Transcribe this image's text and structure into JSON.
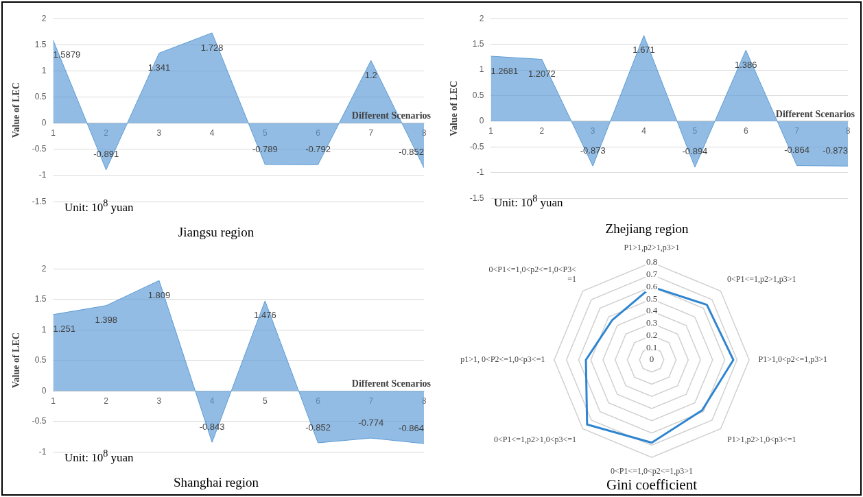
{
  "chart_data": [
    {
      "type": "area",
      "title": "Jiangsu region",
      "xlabel": "Different Scenarios",
      "ylabel": "Value of LEC",
      "categories": [
        "1",
        "2",
        "3",
        "4",
        "5",
        "6",
        "7",
        "8"
      ],
      "series": [
        {
          "color": "#5b9bd5",
          "values": [
            1.5879,
            -0.891,
            1.341,
            1.728,
            -0.789,
            -0.792,
            1.2,
            -0.852
          ]
        }
      ],
      "ylim": [
        -1.5,
        2
      ],
      "yticks": [
        -1.5,
        -1,
        -0.5,
        0,
        0.5,
        1,
        1.5,
        2
      ],
      "grid": "y",
      "data_labels": true,
      "marker": "none",
      "annotations": [
        "Unit: 10$^{8}$ yuan"
      ]
    },
    {
      "type": "area",
      "title": "Zhejiang region",
      "xlabel": "Different Scenarios",
      "ylabel": "Value of LEC",
      "categories": [
        "1",
        "2",
        "3",
        "4",
        "5",
        "6",
        "7",
        "8"
      ],
      "series": [
        {
          "color": "#5b9bd5",
          "values": [
            1.2681,
            1.2072,
            -0.873,
            1.671,
            -0.894,
            1.386,
            -0.864,
            -0.873
          ]
        }
      ],
      "ylim": [
        -1.5,
        2
      ],
      "yticks": [
        -1.5,
        -1,
        -0.5,
        0,
        0.5,
        1,
        1.5,
        2
      ],
      "grid": "y",
      "data_labels": true,
      "marker": "none",
      "annotations": [
        "Unit: 10$^{8}$ yuan"
      ]
    },
    {
      "type": "area",
      "title": "Shanghai region",
      "xlabel": "Different Scenarios",
      "ylabel": "Value of LEC",
      "categories": [
        "1",
        "2",
        "3",
        "4",
        "5",
        "6",
        "7",
        "8"
      ],
      "series": [
        {
          "color": "#5b9bd5",
          "values": [
            1.251,
            1.398,
            1.809,
            -0.843,
            1.476,
            -0.852,
            -0.774,
            -0.864
          ]
        }
      ],
      "ylim": [
        -1,
        2
      ],
      "yticks": [
        -1,
        -0.5,
        0,
        0.5,
        1,
        1.5,
        2
      ],
      "grid": "y",
      "data_labels": true,
      "marker": "none",
      "annotations": [
        "Unit: 10$^{8}$ yuan"
      ]
    },
    {
      "type": "radar",
      "title": "Gini coefficient",
      "categories": [
        "P1>1,p2>1,p3>1",
        "0<P1<=1,p2>1,p3>1",
        "P1>1,0<p2<=1,p3>1",
        "P1>1,p2>1,0<p3<=1",
        "0<P1<=1,0<p2<=1,p3>1",
        "0<P1<=1,p2>1,0<p3<=1",
        "p1>1, 0<P2<=1,0<p3<=1",
        "0<P1<=1,0<p2<=1,0<P3<=1"
      ],
      "series": [
        {
          "color": "#2f85d0",
          "values": [
            0.6,
            0.64,
            0.67,
            0.585,
            0.68,
            0.75,
            0.54,
            0.46
          ]
        }
      ],
      "ylim": [
        0,
        0.8
      ],
      "yticks": [
        0,
        0.1,
        0.2,
        0.3,
        0.4,
        0.5,
        0.6,
        0.7,
        0.8
      ],
      "grid": true,
      "marker": "none"
    }
  ]
}
